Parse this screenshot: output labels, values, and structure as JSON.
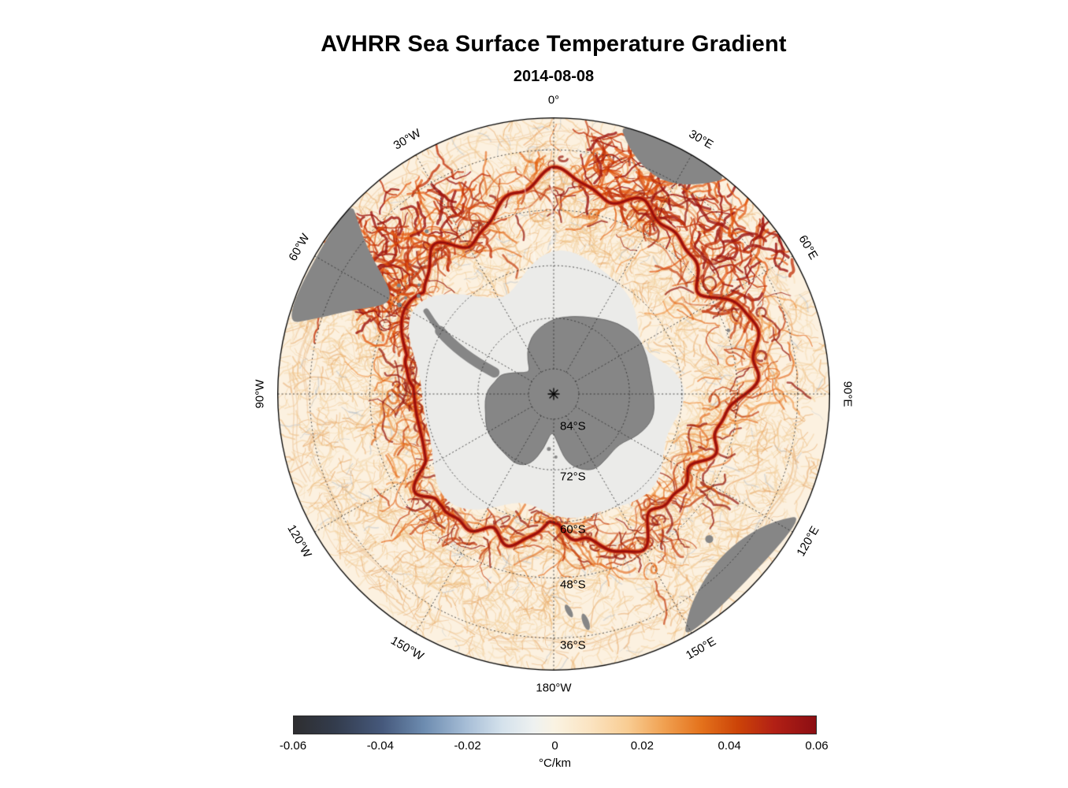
{
  "title": "AVHRR Sea Surface Temperature Gradient",
  "subtitle": "2014-08-08",
  "map": {
    "lon_labels": [
      {
        "text": "0°",
        "deg": 0
      },
      {
        "text": "30°E",
        "deg": 30
      },
      {
        "text": "60°E",
        "deg": 60
      },
      {
        "text": "90°E",
        "deg": 90
      },
      {
        "text": "120°E",
        "deg": 120
      },
      {
        "text": "150°E",
        "deg": 150
      },
      {
        "text": "180°W",
        "deg": 180
      },
      {
        "text": "150°W",
        "deg": -150
      },
      {
        "text": "120°W",
        "deg": -120
      },
      {
        "text": "90°W",
        "deg": -90
      },
      {
        "text": "60°W",
        "deg": -60
      },
      {
        "text": "30°W",
        "deg": -30
      }
    ],
    "lat_labels": [
      {
        "text": "84°S",
        "lat": 84
      },
      {
        "text": "72°S",
        "lat": 72
      },
      {
        "text": "60°S",
        "lat": 60
      },
      {
        "text": "48°S",
        "lat": 48
      },
      {
        "text": "36°S",
        "lat": 36
      }
    ]
  },
  "colorbar": {
    "label": "°C/km",
    "ticks": [
      "-0.06",
      "-0.04",
      "-0.02",
      "0",
      "0.02",
      "0.04",
      "0.06"
    ],
    "gradient": [
      "#2e2e30 0%",
      "#333c4d 8%",
      "#46597c 17%",
      "#6d8cb0 25%",
      "#a6bdd6 33%",
      "#d5e2ec 40%",
      "#eef1f0 46%",
      "#faf3e2 50%",
      "#fbe3c0 57%",
      "#f8cc92 64%",
      "#f0a050 71%",
      "#e4721c 78%",
      "#cc4408 85%",
      "#b22015 92%",
      "#8c0e13 100%"
    ]
  },
  "colors": {
    "ocean": "#fcf1e0",
    "ice": "#ebebe9",
    "land": "#868686",
    "front_core": "#920c0a",
    "front_mid": "#c6260c",
    "front_halo": "#ec7e3a"
  },
  "chart_data": {
    "type": "heatmap",
    "title": "AVHRR Sea Surface Temperature Gradient",
    "subtitle": "2014-08-08",
    "projection": "south polar stereographic",
    "lat_gridlines_S": [
      84,
      72,
      60,
      48,
      36
    ],
    "lon_gridline_interval_deg": 30,
    "lon_labels": [
      "0°",
      "30°E",
      "60°E",
      "90°E",
      "120°E",
      "150°E",
      "180°W",
      "150°W",
      "120°W",
      "90°W",
      "60°W",
      "30°W"
    ],
    "colorbar": {
      "min": -0.06,
      "max": 0.06,
      "ticks": [
        -0.06,
        -0.04,
        -0.02,
        0,
        0.02,
        0.04,
        0.06
      ],
      "units": "°C/km"
    }
  }
}
